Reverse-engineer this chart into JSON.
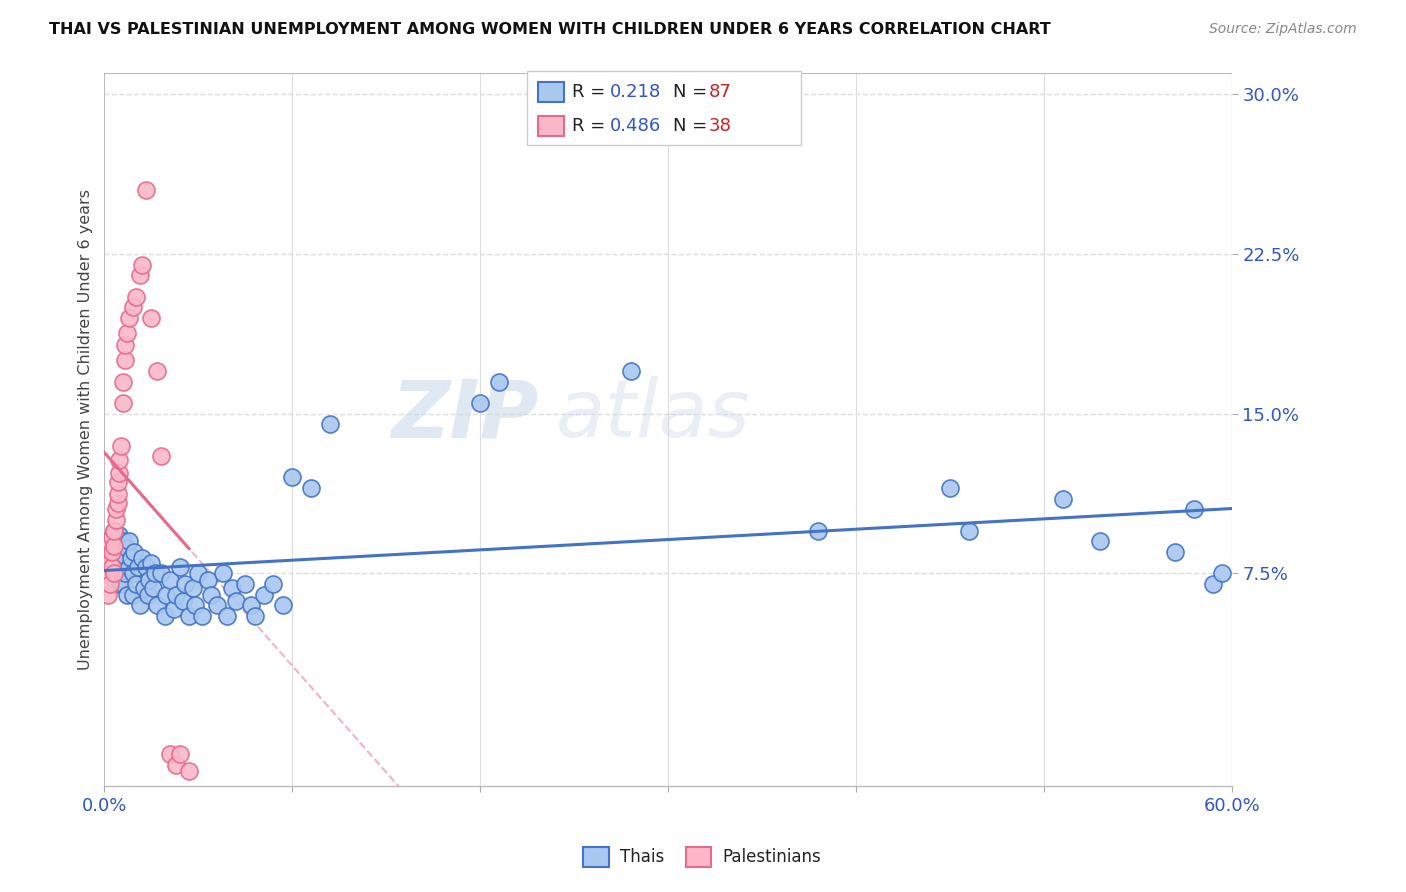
{
  "title": "THAI VS PALESTINIAN UNEMPLOYMENT AMONG WOMEN WITH CHILDREN UNDER 6 YEARS CORRELATION CHART",
  "source": "Source: ZipAtlas.com",
  "ylabel": "Unemployment Among Women with Children Under 6 years",
  "xlim": [
    0.0,
    0.6
  ],
  "ylim": [
    -0.025,
    0.31
  ],
  "xtick_positions": [
    0.0,
    0.1,
    0.2,
    0.3,
    0.4,
    0.5,
    0.6
  ],
  "xticklabels": [
    "0.0%",
    "",
    "",
    "",
    "",
    "",
    "60.0%"
  ],
  "yticks_right": [
    0.075,
    0.15,
    0.225,
    0.3
  ],
  "ytickslabels_right": [
    "7.5%",
    "15.0%",
    "22.5%",
    "30.0%"
  ],
  "thai_color": "#a8c8f0",
  "thai_color_dark": "#4472c4",
  "pal_color": "#f9b8c8",
  "pal_color_dark": "#e8698a",
  "R_thai": "0.218",
  "N_thai": "87",
  "R_pal": "0.486",
  "N_pal": "38",
  "watermark_zip": "ZIP",
  "watermark_atlas": "atlas",
  "thai_x": [
    0.001,
    0.002,
    0.002,
    0.003,
    0.003,
    0.004,
    0.004,
    0.005,
    0.005,
    0.005,
    0.006,
    0.006,
    0.007,
    0.007,
    0.007,
    0.008,
    0.008,
    0.008,
    0.009,
    0.009,
    0.01,
    0.01,
    0.01,
    0.011,
    0.011,
    0.012,
    0.012,
    0.013,
    0.013,
    0.014,
    0.015,
    0.015,
    0.016,
    0.017,
    0.018,
    0.019,
    0.02,
    0.021,
    0.022,
    0.023,
    0.024,
    0.025,
    0.026,
    0.027,
    0.028,
    0.03,
    0.032,
    0.033,
    0.035,
    0.037,
    0.038,
    0.04,
    0.042,
    0.043,
    0.045,
    0.047,
    0.048,
    0.05,
    0.052,
    0.055,
    0.057,
    0.06,
    0.063,
    0.065,
    0.068,
    0.07,
    0.075,
    0.078,
    0.08,
    0.085,
    0.09,
    0.095,
    0.1,
    0.11,
    0.12,
    0.2,
    0.21,
    0.28,
    0.38,
    0.45,
    0.46,
    0.51,
    0.53,
    0.57,
    0.58,
    0.59,
    0.595
  ],
  "thai_y": [
    0.08,
    0.085,
    0.09,
    0.075,
    0.088,
    0.082,
    0.092,
    0.078,
    0.085,
    0.095,
    0.07,
    0.088,
    0.076,
    0.085,
    0.092,
    0.072,
    0.082,
    0.093,
    0.075,
    0.088,
    0.08,
    0.09,
    0.07,
    0.083,
    0.075,
    0.087,
    0.065,
    0.078,
    0.09,
    0.082,
    0.075,
    0.065,
    0.085,
    0.07,
    0.078,
    0.06,
    0.082,
    0.068,
    0.078,
    0.065,
    0.072,
    0.08,
    0.068,
    0.075,
    0.06,
    0.075,
    0.055,
    0.065,
    0.072,
    0.058,
    0.065,
    0.078,
    0.062,
    0.07,
    0.055,
    0.068,
    0.06,
    0.075,
    0.055,
    0.072,
    0.065,
    0.06,
    0.075,
    0.055,
    0.068,
    0.062,
    0.07,
    0.06,
    0.055,
    0.065,
    0.07,
    0.06,
    0.12,
    0.115,
    0.145,
    0.155,
    0.165,
    0.17,
    0.095,
    0.115,
    0.095,
    0.11,
    0.09,
    0.085,
    0.105,
    0.07,
    0.075
  ],
  "pal_x": [
    0.001,
    0.002,
    0.002,
    0.003,
    0.003,
    0.003,
    0.004,
    0.004,
    0.004,
    0.005,
    0.005,
    0.005,
    0.006,
    0.006,
    0.007,
    0.007,
    0.007,
    0.008,
    0.008,
    0.009,
    0.01,
    0.01,
    0.011,
    0.011,
    0.012,
    0.013,
    0.015,
    0.017,
    0.019,
    0.02,
    0.022,
    0.025,
    0.028,
    0.03,
    0.035,
    0.038,
    0.04,
    0.045
  ],
  "pal_y": [
    0.075,
    0.085,
    0.065,
    0.08,
    0.09,
    0.07,
    0.078,
    0.085,
    0.092,
    0.088,
    0.075,
    0.095,
    0.1,
    0.105,
    0.108,
    0.112,
    0.118,
    0.122,
    0.128,
    0.135,
    0.155,
    0.165,
    0.175,
    0.182,
    0.188,
    0.195,
    0.2,
    0.205,
    0.215,
    0.22,
    0.255,
    0.195,
    0.17,
    0.13,
    -0.01,
    -0.015,
    -0.01,
    -0.018
  ]
}
